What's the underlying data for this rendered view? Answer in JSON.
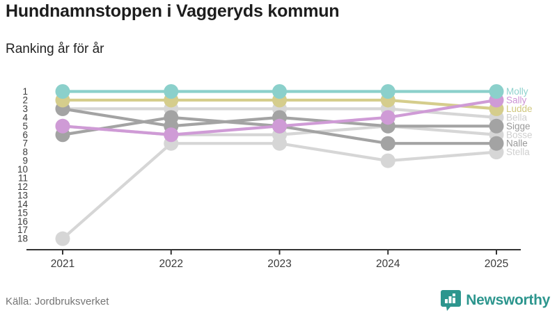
{
  "header": {
    "title": "Hundnamnstoppen i Vaggeryds kommun",
    "subtitle": "Ranking år för år"
  },
  "footer": {
    "source": "Källa: Jordbruksverket",
    "logo_text": "Newsworthy",
    "logo_color": "#2d968e"
  },
  "chart_data": {
    "type": "line",
    "variant": "bump-ranking",
    "x": [
      2021,
      2022,
      2023,
      2024,
      2025
    ],
    "x_tick_labels": [
      "2021",
      "2022",
      "2023",
      "2024",
      "2025"
    ],
    "ylabel_ranks": [
      1,
      2,
      3,
      4,
      5,
      6,
      7,
      8,
      9,
      10,
      11,
      12,
      13,
      14,
      15,
      16,
      17,
      18
    ],
    "ylim": [
      1,
      18
    ],
    "y_axis_inverted": true,
    "grid": false,
    "legend_position": "right-edge-labels",
    "axis_color": "#333333",
    "tick_label_color": "#3a3a3a",
    "series": [
      {
        "name": "Stella",
        "color": "#d6d6d6",
        "label_color": "#cfcfcf",
        "values": [
          18,
          7,
          7,
          9,
          8
        ]
      },
      {
        "name": "Bosse",
        "color": "#d6d6d6",
        "label_color": "#cfcfcf",
        "values": [
          5,
          6,
          6,
          5,
          6
        ]
      },
      {
        "name": "Bella",
        "color": "#d6d6d6",
        "label_color": "#cfcfcf",
        "values": [
          3,
          3,
          3,
          3,
          4
        ]
      },
      {
        "name": "Nalle",
        "color": "#a3a3a3",
        "label_color": "#9a9a9a",
        "values": [
          6,
          4,
          5,
          7,
          7
        ]
      },
      {
        "name": "Sigge",
        "color": "#a3a3a3",
        "label_color": "#9a9a9a",
        "values": [
          3,
          5,
          4,
          5,
          5
        ]
      },
      {
        "name": "Ludde",
        "color": "#d5cd8c",
        "label_color": "#d0c87e",
        "values": [
          2,
          2,
          2,
          2,
          3
        ]
      },
      {
        "name": "Sally",
        "color": "#cf9bd6",
        "label_color": "#cd93d6",
        "values": [
          5,
          6,
          5,
          4,
          2
        ]
      },
      {
        "name": "Molly",
        "color": "#8bd0cb",
        "label_color": "#8fd2cd",
        "values": [
          1,
          1,
          1,
          1,
          1
        ]
      }
    ]
  }
}
